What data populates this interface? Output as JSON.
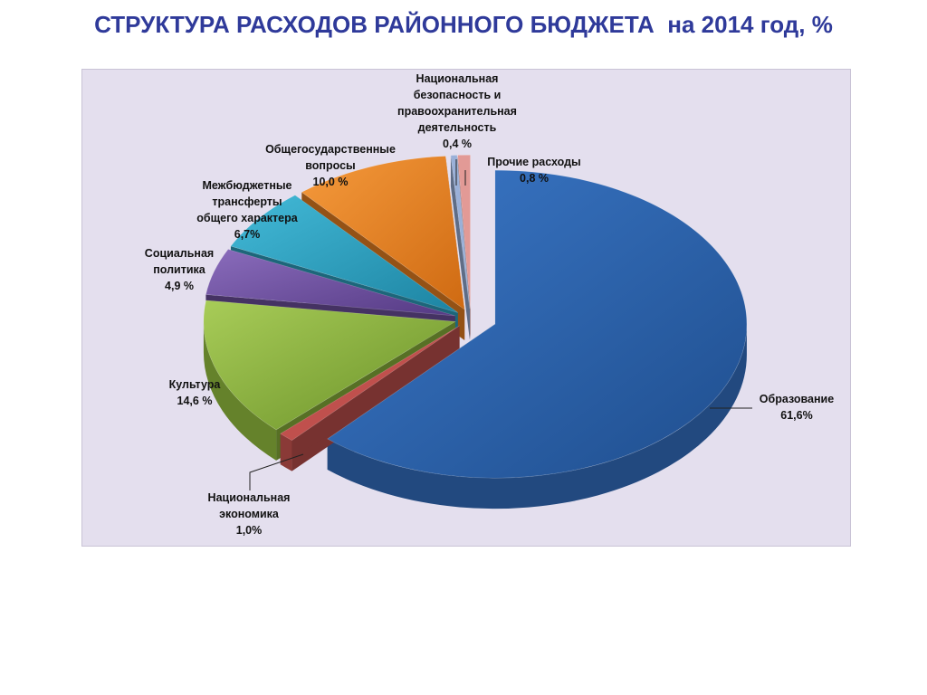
{
  "title": "СТРУКТУРА РАСХОДОВ РАЙОННОГО БЮДЖЕТА  на 2014 год, %",
  "chart_data": {
    "type": "pie",
    "title": "СТРУКТУРА РАСХОДОВ РАЙОННОГО БЮДЖЕТА  на 2014 год, %",
    "three_d": true,
    "exploded": true,
    "slices": [
      {
        "name": "Образование",
        "value": 61.6,
        "label_value": "61,6%",
        "color": "#2f66b0"
      },
      {
        "name": "Национальная экономика",
        "value": 1.0,
        "label_value": "1,0%",
        "color": "#c0504d"
      },
      {
        "name": "Культура",
        "value": 14.6,
        "label_value": "14,6 %",
        "color": "#8cb43c"
      },
      {
        "name": "Социальная политика",
        "value": 4.9,
        "label_value": "4,9 %",
        "color": "#7051a0"
      },
      {
        "name": "Межбюджетные трансферты общего характера",
        "value": 6.7,
        "label_value": "6,7%",
        "color": "#2ea4c4"
      },
      {
        "name": "Общегосударственные вопросы",
        "value": 10.0,
        "label_value": "10,0 %",
        "color": "#ee8422"
      },
      {
        "name": "Национальная безопасность и правоохранительная деятельность",
        "value": 0.4,
        "label_value": "0,4 %",
        "color": "#9ab0d8"
      },
      {
        "name": "Прочие расходы",
        "value": 0.8,
        "label_value": "0,8 %",
        "color": "#e29a96"
      }
    ]
  },
  "labels": {
    "obrazovanie": {
      "name": "Образование",
      "value": "61,6%"
    },
    "nats_ekonomika": {
      "name": "Национальная\nэкономика",
      "value": "1,0%"
    },
    "kultura": {
      "name": "Культура",
      "value": "14,6 %"
    },
    "sots_politika": {
      "name": "Социальная\nполитика",
      "value": "4,9 %"
    },
    "mezhbyudzhet": {
      "name": "Межбюджетные\nтрансферты\nобщего характера",
      "value": "6,7%"
    },
    "obshchegos": {
      "name": "Общегосударственные\nвопросы",
      "value": "10,0 %"
    },
    "nats_bezopasnost": {
      "name": "Национальная\nбезопасность и\nправоохранительная\nдеятельность",
      "value": "0,4 %"
    },
    "prochie": {
      "name": "Прочие расходы",
      "value": "0,8 %"
    }
  }
}
